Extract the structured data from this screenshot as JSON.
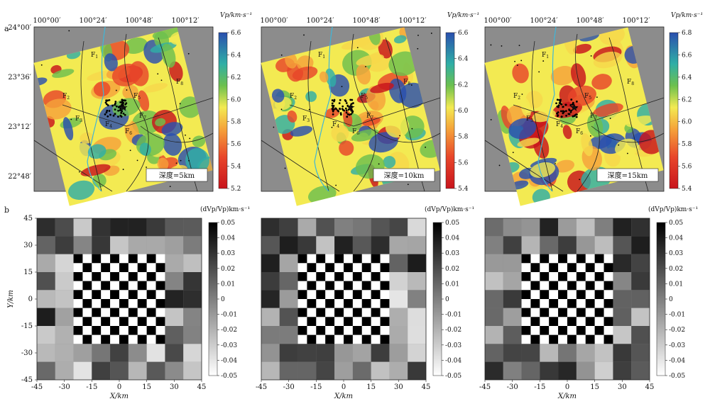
{
  "figure": {
    "panel_a_label": "a",
    "panel_b_label": "b"
  },
  "chart_data": [
    {
      "type": "heatmap",
      "panel": "a",
      "map_panels": [
        {
          "depth_label": "深度=5km",
          "colorbar_title": "Vp/km·s⁻¹",
          "colorbar_ticks": [
            "6.6",
            "6.4",
            "6.2",
            "6.0",
            "5.8",
            "5.6",
            "5.4",
            "5.2"
          ],
          "vrange": [
            5.2,
            6.6
          ]
        },
        {
          "depth_label": "深度=10km",
          "colorbar_title": "Vp/km·s⁻¹",
          "colorbar_ticks": [
            "6.6",
            "6.4",
            "6.2",
            "6.0",
            "5.8",
            "5.6",
            "5.4"
          ],
          "vrange": [
            5.4,
            6.6
          ]
        },
        {
          "depth_label": "深度=15km",
          "colorbar_title": "Vp/km·s⁻¹",
          "colorbar_ticks": [
            "6.8",
            "6.6",
            "6.4",
            "6.2",
            "6.0",
            "5.8",
            "5.6",
            "5.4"
          ],
          "vrange": [
            5.4,
            6.8
          ]
        }
      ],
      "lon_ticks": [
        "100°00′",
        "100°24′",
        "100°48′",
        "100°12′"
      ],
      "lat_ticks": [
        "24°00′",
        "23°36′",
        "23°12′",
        "22°48′"
      ],
      "fault_labels": [
        "F1",
        "F2",
        "F3",
        "F4",
        "F5",
        "F6",
        "F7",
        "F8"
      ],
      "colors": {
        "background_gray": "#8c8c8c",
        "river": "#3fb6d8",
        "event": "#000000",
        "epicenter": "#ffffff"
      }
    },
    {
      "type": "heatmap",
      "panel": "b",
      "checkerboard_panels": [
        {
          "colorbar_title": "(dVp/Vp)km·s⁻¹",
          "colorbar_ticks": [
            "0.05",
            "0.04",
            "0.03",
            "0.02",
            "0.01",
            "0",
            "-0.01",
            "-0.02",
            "-0.03",
            "-0.04",
            "-0.05"
          ]
        },
        {
          "colorbar_title": "(dVp/Vp)km·s⁻¹",
          "colorbar_ticks": [
            "0.05",
            "0.04",
            "0.03",
            "0.02",
            "0.01",
            "0",
            "-0.01",
            "-0.02",
            "-0.03",
            "-0.04",
            "-0.05"
          ]
        },
        {
          "colorbar_title": "(dVp/Vp)km·s⁻¹",
          "colorbar_ticks": [
            "0.05",
            "0.04",
            "0.03",
            "0.02",
            "0.01",
            "0",
            "-0.01",
            "-0.02",
            "-0.03",
            "-0.04",
            "-0.05"
          ]
        }
      ],
      "xlabel": "X/km",
      "ylabel": "Y/km",
      "x_ticks": [
        "-45",
        "-30",
        "-15",
        "0",
        "15",
        "30",
        "45"
      ],
      "y_ticks": [
        "45",
        "30",
        "15",
        "0",
        "-15",
        "-30",
        "-45"
      ],
      "xlim": [
        -45,
        45
      ],
      "ylim": [
        -45,
        45
      ],
      "vrange": [
        -0.05,
        0.05
      ]
    }
  ]
}
